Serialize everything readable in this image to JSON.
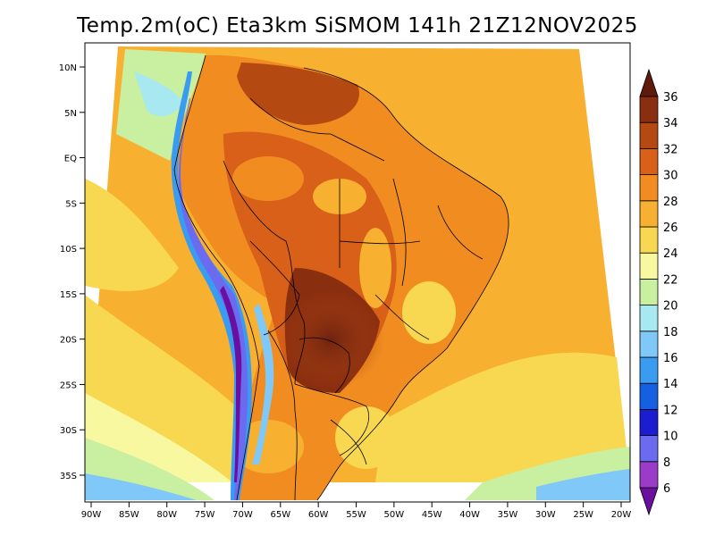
{
  "title": "Temp.2m(oC) Eta3km SiSMOM 141h 21Z12NOV2025",
  "axes": {
    "lat_labels": [
      "10N",
      "5N",
      "EQ",
      "5S",
      "10S",
      "15S",
      "20S",
      "25S",
      "30S",
      "35S"
    ],
    "lat_values": [
      10,
      5,
      0,
      -5,
      -10,
      -15,
      -20,
      -25,
      -30,
      -35
    ],
    "lon_labels": [
      "90W",
      "85W",
      "80W",
      "75W",
      "70W",
      "65W",
      "60W",
      "55W",
      "50W",
      "45W",
      "40W",
      "35W",
      "30W",
      "25W",
      "20W"
    ],
    "lon_values": [
      -90,
      -85,
      -80,
      -75,
      -70,
      -65,
      -60,
      -55,
      -50,
      -45,
      -40,
      -35,
      -30,
      -25,
      -20
    ]
  },
  "colorbar": {
    "labels": [
      "6",
      "8",
      "10",
      "12",
      "14",
      "16",
      "18",
      "20",
      "22",
      "24",
      "26",
      "28",
      "30",
      "32",
      "34",
      "36"
    ],
    "colors": [
      "#6a0fa0",
      "#9b3cc8",
      "#6b6bf0",
      "#1c1cd0",
      "#1460e0",
      "#3a9cf0",
      "#7fc8f8",
      "#a8e8f0",
      "#c8f0a0",
      "#f8f8a0",
      "#f8d850",
      "#f8b030",
      "#f08c20",
      "#d86018",
      "#b44a12",
      "#8a2e10",
      "#5e1a0a"
    ]
  },
  "map_colors": {
    "ocean_south": "#7fc8f8",
    "ocean_mid": "#c8f0a0",
    "ocean_warm": "#f8d850",
    "ocean_tropical": "#f8b030",
    "land_hot": "#d86018",
    "land_very_hot": "#8a2e10",
    "land_warm": "#f08c20",
    "andes_cold": "#6b6bf0",
    "andes_cool": "#3a9cf0"
  }
}
